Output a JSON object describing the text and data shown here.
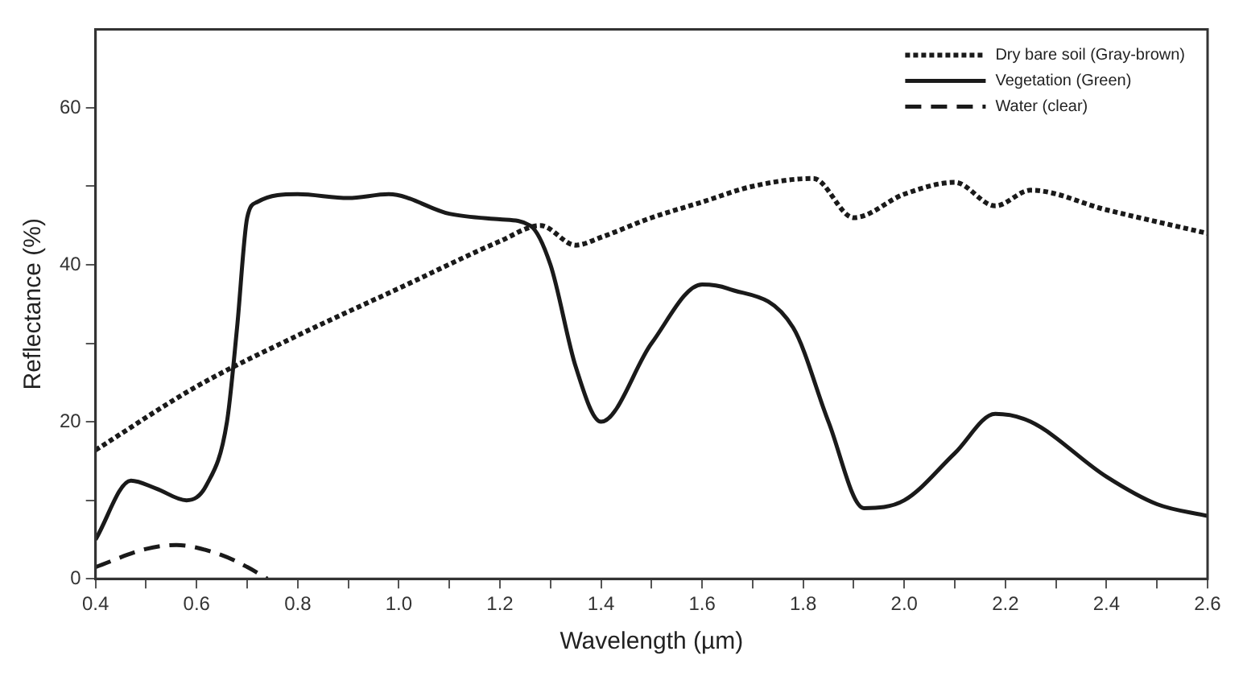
{
  "chart_data": {
    "type": "line",
    "xlabel": "Wavelength (µm)",
    "ylabel": "Reflectance (%)",
    "xlim": [
      0.4,
      2.6
    ],
    "ylim": [
      0,
      70
    ],
    "xticks": [
      0.4,
      {
        "value": 0.5,
        "label": null
      },
      0.6,
      {
        "value": 0.7,
        "label": null
      },
      0.8,
      {
        "value": 0.9,
        "label": null
      },
      {
        "value": 1.0,
        "label": "1.0"
      },
      {
        "value": 1.1,
        "label": null
      },
      1.2,
      {
        "value": 1.3,
        "label": null
      },
      1.4,
      {
        "value": 1.5,
        "label": null
      },
      1.6,
      {
        "value": 1.7,
        "label": null
      },
      1.8,
      {
        "value": 1.9,
        "label": null
      },
      {
        "value": 2.0,
        "label": "2.0"
      },
      {
        "value": 2.1,
        "label": null
      },
      2.2,
      {
        "value": 2.3,
        "label": null
      },
      2.4,
      {
        "value": 2.5,
        "label": null
      },
      2.6
    ],
    "yticks": [
      0,
      {
        "value": 10,
        "label": null
      },
      20,
      {
        "value": 30,
        "label": null
      },
      40,
      {
        "value": 50,
        "label": null
      },
      60
    ],
    "grid": false,
    "legend": "top right",
    "marker": "none",
    "series": [
      {
        "name": "Dry bare soil (Gray-brown)",
        "color": "#1a1a1a",
        "line_style": "dotted",
        "x": [
          0.4,
          0.6,
          0.8,
          1.0,
          1.2,
          1.28,
          1.35,
          1.4,
          1.5,
          1.6,
          1.7,
          1.82,
          1.9,
          2.0,
          2.1,
          2.18,
          2.25,
          2.4,
          2.6
        ],
        "values": [
          16.4,
          24.5,
          31,
          37,
          43,
          45,
          42.5,
          43.5,
          46,
          48,
          50,
          51,
          46,
          49,
          50.5,
          47.5,
          49.5,
          47,
          44
        ]
      },
      {
        "name": "Vegetation (Green)",
        "color": "#1a1a1a",
        "line_style": "solid",
        "x": [
          0.4,
          0.47,
          0.52,
          0.58,
          0.62,
          0.66,
          0.68,
          0.7,
          0.72,
          0.8,
          0.9,
          0.98,
          1.1,
          1.2,
          1.26,
          1.3,
          1.35,
          1.4,
          1.5,
          1.6,
          1.65,
          1.78,
          1.85,
          1.92,
          2.0,
          2.1,
          2.18,
          2.25,
          2.4,
          2.5,
          2.6
        ],
        "values": [
          5,
          12.5,
          11.5,
          10,
          12,
          20,
          32,
          46,
          48,
          49,
          48.5,
          49,
          46.5,
          45.8,
          45,
          40,
          27,
          20,
          30,
          37.5,
          37,
          32,
          20,
          9,
          10,
          16,
          21,
          20,
          13,
          9.5,
          8
        ]
      },
      {
        "name": "Water (clear)",
        "color": "#1a1a1a",
        "line_style": "dashed",
        "x": [
          0.4,
          0.5,
          0.56,
          0.65,
          0.7,
          0.74
        ],
        "values": [
          1.5,
          3.8,
          4.3,
          3,
          1.5,
          0
        ]
      }
    ]
  }
}
